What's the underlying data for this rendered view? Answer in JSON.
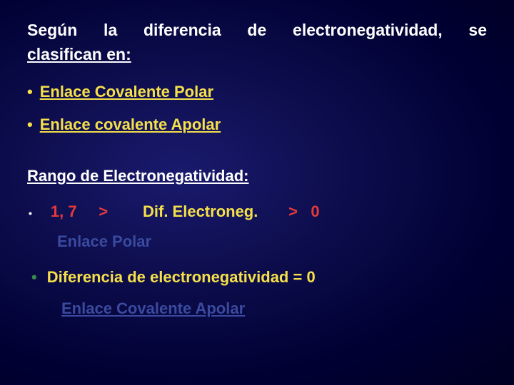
{
  "colors": {
    "background_center": "#1a1a6e",
    "background_edge": "#000022",
    "white": "#ffffff",
    "yellow": "#f5e04a",
    "red": "#e63a3a",
    "dark_blue": "#3a4a9e",
    "green": "#3a8a4a"
  },
  "typography": {
    "font_family": "Verdana",
    "base_size_pt": 17,
    "weight": "bold"
  },
  "title": {
    "line1": "Según la diferencia de electronegatividad, se",
    "line2": "clasifican en:"
  },
  "bullets": [
    {
      "marker": "•",
      "text": "Enlace Covalente Polar"
    },
    {
      "marker": "•",
      "text": "Enlace covalente Apolar"
    }
  ],
  "subheading": "Rango de Electronegatividad:",
  "range": {
    "marker": "•",
    "left_value": "1, 7",
    "left_op": ">",
    "mid_label": "Dif. Electroneg.",
    "right_op": ">",
    "right_value": "0"
  },
  "polar_label": "Enlace Polar",
  "difference": {
    "marker": "•",
    "text": "Diferencia de electronegatividad  =   0"
  },
  "apolar_label": "Enlace  Covalente Apolar"
}
